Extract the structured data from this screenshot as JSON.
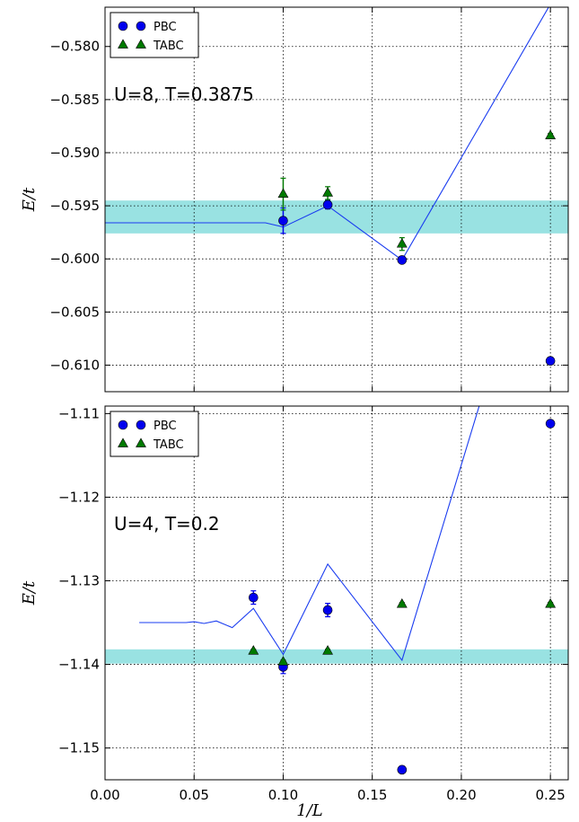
{
  "chart_data": [
    {
      "type": "scatter",
      "annotation": "U=8, T=0.3875",
      "xlabel": "",
      "ylabel": "E/t",
      "xlim": [
        0.0,
        0.26
      ],
      "ylim": [
        -0.6125,
        -0.5763
      ],
      "yticks": [
        -0.58,
        -0.585,
        -0.59,
        -0.595,
        -0.6,
        -0.605,
        -0.61
      ],
      "ytick_labels": [
        "−0.580",
        "−0.585",
        "−0.590",
        "−0.595",
        "−0.600",
        "−0.605",
        "−0.610"
      ],
      "xticks": [
        0.0,
        0.05,
        0.1,
        0.15,
        0.2,
        0.25
      ],
      "show_xtick_labels": false,
      "grid": true,
      "legend_position": "top-left",
      "band": {
        "ymin": -0.5976,
        "ymax": -0.5945,
        "color": "#99e2e2"
      },
      "series": [
        {
          "name": "PBC",
          "marker": "circle",
          "color": "#0000ee",
          "points": [
            {
              "x": 0.1,
              "y": -0.5964,
              "err": 0.0012
            },
            {
              "x": 0.125,
              "y": -0.5949,
              "err": 0.0004
            },
            {
              "x": 0.1667,
              "y": -0.6001,
              "err": 0.0002
            },
            {
              "x": 0.25,
              "y": -0.6096,
              "err": 0.0002
            }
          ]
        },
        {
          "name": "TABC",
          "marker": "triangle",
          "color": "#007a00",
          "points": [
            {
              "x": 0.1,
              "y": -0.5939,
              "err": 0.0015
            },
            {
              "x": 0.125,
              "y": -0.5938,
              "err": 0.0006
            },
            {
              "x": 0.1667,
              "y": -0.5986,
              "err": 0.0006
            },
            {
              "x": 0.25,
              "y": -0.5884,
              "err": 0.0002
            }
          ]
        }
      ],
      "fit_line": {
        "color": "#1a3cf0",
        "x": [
          0.0,
          0.03,
          0.06,
          0.07,
          0.08,
          0.09,
          0.1,
          0.125,
          0.1667,
          0.25
        ],
        "y": [
          -0.5966,
          -0.5966,
          -0.5966,
          -0.5966,
          -0.5966,
          -0.5966,
          -0.597,
          -0.595,
          -0.6001,
          -0.576
        ]
      }
    },
    {
      "type": "scatter",
      "annotation": "U=4, T=0.2",
      "xlabel": "1/L",
      "ylabel": "E/t",
      "xlim": [
        0.0,
        0.26
      ],
      "ylim": [
        -1.1538,
        -1.1091
      ],
      "yticks": [
        -1.11,
        -1.12,
        -1.13,
        -1.14,
        -1.15
      ],
      "ytick_labels": [
        "−1.11",
        "−1.12",
        "−1.13",
        "−1.14",
        "−1.15"
      ],
      "xticks": [
        0.0,
        0.05,
        0.1,
        0.15,
        0.2,
        0.25
      ],
      "xtick_labels": [
        "0.00",
        "0.05",
        "0.10",
        "0.15",
        "0.20",
        "0.25"
      ],
      "show_xtick_labels": true,
      "grid": true,
      "legend_position": "top-left",
      "band": {
        "ymin": -1.1399,
        "ymax": -1.1382,
        "color": "#99e2e2"
      },
      "series": [
        {
          "name": "PBC",
          "marker": "circle",
          "color": "#0000ee",
          "points": [
            {
              "x": 0.0833,
              "y": -1.132,
              "err": 0.0008
            },
            {
              "x": 0.1,
              "y": -1.1403,
              "err": 0.0008
            },
            {
              "x": 0.125,
              "y": -1.1335,
              "err": 0.0008
            },
            {
              "x": 0.1667,
              "y": -1.1526,
              "err": 0.0002
            },
            {
              "x": 0.25,
              "y": -1.1112,
              "err": 0.0002
            }
          ]
        },
        {
          "name": "TABC",
          "marker": "triangle",
          "color": "#007a00",
          "points": [
            {
              "x": 0.0833,
              "y": -1.1384,
              "err": 0.0002
            },
            {
              "x": 0.1,
              "y": -1.1397,
              "err": 0.0002
            },
            {
              "x": 0.125,
              "y": -1.1384,
              "err": 0.0002
            },
            {
              "x": 0.1667,
              "y": -1.1328,
              "err": 0.0002
            },
            {
              "x": 0.25,
              "y": -1.1328,
              "err": 0.0002
            }
          ]
        }
      ],
      "fit_line": {
        "color": "#1a3cf0",
        "x": [
          0.0192,
          0.0455,
          0.05,
          0.0556,
          0.0625,
          0.0714,
          0.0833,
          0.1,
          0.125,
          0.1667,
          0.21
        ],
        "y": [
          -1.135,
          -1.135,
          -1.1349,
          -1.1351,
          -1.1348,
          -1.1356,
          -1.1333,
          -1.1388,
          -1.128,
          -1.1395,
          -1.1091
        ]
      }
    }
  ]
}
